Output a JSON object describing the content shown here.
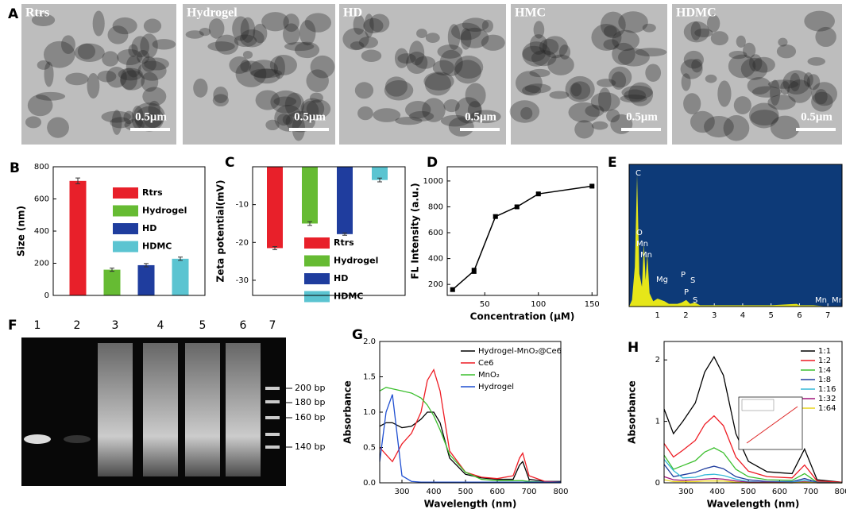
{
  "panel_a": {
    "letter": "A",
    "images": [
      {
        "label": "Rtrs",
        "scale_bar": "0.5μm"
      },
      {
        "label": "Hydrogel",
        "scale_bar": "0.5μm"
      },
      {
        "label": "HD",
        "scale_bar": "0.5μm"
      },
      {
        "label": "HMC",
        "scale_bar": "0.5μm"
      },
      {
        "label": "HDMC",
        "scale_bar": "0.5μm"
      }
    ]
  },
  "panel_f": {
    "letter": "F",
    "lanes": [
      "1",
      "2",
      "3",
      "4",
      "5",
      "6",
      "7"
    ],
    "markers": [
      "200 bp",
      "180 bp",
      "160 bp",
      "140 bp"
    ]
  },
  "chart_data": [
    {
      "panel": "B",
      "type": "bar",
      "categories": [
        "Rtrs",
        "Hydrogel",
        "HD",
        "HDMC"
      ],
      "values": [
        712,
        160,
        188,
        228
      ],
      "errors": [
        18,
        10,
        10,
        10
      ],
      "colors": [
        "#e8202a",
        "#66bb33",
        "#1f3d9e",
        "#5bc4d1"
      ],
      "ylabel": "Size (nm)",
      "ylim": [
        0,
        800
      ],
      "yticks": [
        0,
        200,
        400,
        600,
        800
      ],
      "legend": "upper right"
    },
    {
      "panel": "C",
      "type": "bar",
      "categories": [
        "Rtrs",
        "Hydrogel",
        "HD",
        "HDMC"
      ],
      "values": [
        -21.5,
        -15,
        -17.8,
        -3.5
      ],
      "errors": [
        0.4,
        0.5,
        0.3,
        0.5
      ],
      "colors": [
        "#e8202a",
        "#66bb33",
        "#1f3d9e",
        "#5bc4d1"
      ],
      "ylabel": "Zeta potential(mV)",
      "ylim": [
        -34,
        0
      ],
      "yticks": [
        -30,
        -20,
        -10
      ],
      "legend": "lower right"
    },
    {
      "panel": "D",
      "type": "line",
      "x": [
        20,
        40,
        60,
        80,
        100,
        150
      ],
      "values": [
        160,
        305,
        725,
        800,
        900,
        960
      ],
      "errors": [
        12,
        20,
        12,
        12,
        10,
        8
      ],
      "color": "#000000",
      "xlabel": "Concentration (μM)",
      "ylabel": "FL Intensity (a.u.)",
      "xlim": [
        15,
        155
      ],
      "xticks": [
        50,
        100,
        150
      ],
      "ylim": [
        115,
        1110
      ],
      "yticks": [
        200,
        400,
        600,
        800,
        1000
      ]
    },
    {
      "panel": "E",
      "type": "area",
      "x": [
        0,
        0.1,
        0.2,
        0.28,
        0.36,
        0.45,
        0.52,
        0.58,
        0.64,
        0.72,
        0.85,
        1.0,
        1.25,
        1.4,
        1.7,
        1.85,
        2.01,
        2.15,
        2.31,
        2.5,
        3,
        5,
        5.9,
        6.0,
        6.49,
        7,
        7.5
      ],
      "values": [
        0,
        5,
        30,
        100,
        25,
        15,
        48,
        20,
        40,
        10,
        4,
        6,
        4,
        2,
        2,
        3,
        5,
        2,
        3,
        1,
        1,
        1,
        2,
        1,
        1,
        0,
        0
      ],
      "color": "#e6e619",
      "background": "#0d3a78",
      "xlim": [
        0,
        7.5
      ],
      "xticks": [
        1,
        2,
        3,
        4,
        5,
        6,
        7
      ],
      "ylim": [
        0,
        108
      ],
      "annotations": [
        "C",
        "O",
        "Mn",
        "Mn",
        "Mg",
        "P",
        "S",
        "P",
        "S",
        "Mn",
        "Mn"
      ]
    },
    {
      "panel": "G",
      "type": "line",
      "x": [
        230,
        250,
        270,
        300,
        330,
        360,
        380,
        400,
        420,
        450,
        500,
        550,
        600,
        650,
        670,
        680,
        700,
        750,
        800
      ],
      "series": [
        {
          "name": "Hydrogel-MnO₂@Ce6",
          "color": "#000000",
          "values": [
            0.8,
            0.85,
            0.85,
            0.78,
            0.8,
            0.9,
            1.0,
            1.0,
            0.85,
            0.35,
            0.12,
            0.07,
            0.05,
            0.05,
            0.25,
            0.3,
            0.05,
            0.02,
            0.02
          ]
        },
        {
          "name": "Ce6",
          "color": "#ee1c24",
          "values": [
            0.5,
            0.4,
            0.3,
            0.55,
            0.7,
            1.0,
            1.45,
            1.6,
            1.3,
            0.45,
            0.15,
            0.08,
            0.06,
            0.1,
            0.35,
            0.42,
            0.1,
            0.02,
            0.01
          ]
        },
        {
          "name": "MnO₂",
          "color": "#3cbf2e",
          "values": [
            1.3,
            1.35,
            1.33,
            1.3,
            1.27,
            1.2,
            1.1,
            0.95,
            0.75,
            0.4,
            0.15,
            0.05,
            0.03,
            0.03,
            0.03,
            0.03,
            0.02,
            0.01,
            0.01
          ]
        },
        {
          "name": "Hydrogel",
          "color": "#1f4fd1",
          "values": [
            0.3,
            1.0,
            1.25,
            0.1,
            0.02,
            0.01,
            0.01,
            0.01,
            0.01,
            0.01,
            0.01,
            0.01,
            0.01,
            0.01,
            0.01,
            0.01,
            0.01,
            0.01,
            0.01
          ]
        }
      ],
      "xlabel": "Wavelength (nm)",
      "ylabel": "Absorbance",
      "xlim": [
        230,
        800
      ],
      "xticks": [
        300,
        400,
        500,
        600,
        700,
        800
      ],
      "ylim": [
        0,
        2.0
      ],
      "yticks": [
        {
          "value": 0,
          "label": "0.0"
        },
        0.5,
        {
          "value": 1,
          "label": "1.0"
        },
        1.5,
        {
          "value": 2,
          "label": "2.0"
        }
      ],
      "legend": "upper right"
    },
    {
      "panel": "H",
      "type": "line",
      "x": [
        230,
        260,
        290,
        330,
        360,
        390,
        420,
        460,
        500,
        560,
        640,
        680,
        720,
        800
      ],
      "series": [
        {
          "name": "1:1",
          "color": "#000000",
          "values": [
            1.2,
            0.8,
            1.0,
            1.3,
            1.8,
            2.05,
            1.75,
            0.8,
            0.35,
            0.18,
            0.15,
            0.55,
            0.05,
            0.01
          ]
        },
        {
          "name": "1:2",
          "color": "#ee1c24",
          "values": [
            0.64,
            0.42,
            0.53,
            0.69,
            0.95,
            1.09,
            0.93,
            0.42,
            0.19,
            0.1,
            0.08,
            0.29,
            0.03,
            0.01
          ]
        },
        {
          "name": "1:4",
          "color": "#3cbf2e",
          "values": [
            0.45,
            0.22,
            0.28,
            0.36,
            0.5,
            0.57,
            0.49,
            0.22,
            0.1,
            0.05,
            0.04,
            0.15,
            0.01,
            0
          ]
        },
        {
          "name": "1:8",
          "color": "#1f3d9e",
          "values": [
            0.3,
            0.1,
            0.13,
            0.17,
            0.23,
            0.27,
            0.23,
            0.1,
            0.05,
            0.02,
            0.02,
            0.07,
            0.01,
            0
          ]
        },
        {
          "name": "1:16",
          "color": "#35b8d8",
          "values": [
            0.38,
            0.2,
            0.08,
            0.09,
            0.13,
            0.14,
            0.12,
            0.06,
            0.02,
            0.01,
            0.01,
            0.04,
            0,
            0
          ]
        },
        {
          "name": "1:32",
          "color": "#a0147a",
          "values": [
            0.1,
            0.05,
            0.04,
            0.05,
            0.06,
            0.07,
            0.06,
            0.03,
            0.01,
            0.01,
            0,
            0.02,
            0,
            0
          ]
        },
        {
          "name": "1:64",
          "color": "#e8d41a",
          "values": [
            0.05,
            0.02,
            0.02,
            0.02,
            0.03,
            0.03,
            0.03,
            0.01,
            0,
            0,
            0,
            0.01,
            0,
            0
          ]
        }
      ],
      "xlabel": "Wavelength (nm)",
      "ylabel": "Absorbance",
      "xlim": [
        230,
        800
      ],
      "xticks": [
        300,
        400,
        500,
        600,
        700,
        800
      ],
      "ylim": [
        0,
        2.3
      ],
      "yticks": [
        0,
        1,
        2
      ],
      "legend": "upper right"
    }
  ]
}
